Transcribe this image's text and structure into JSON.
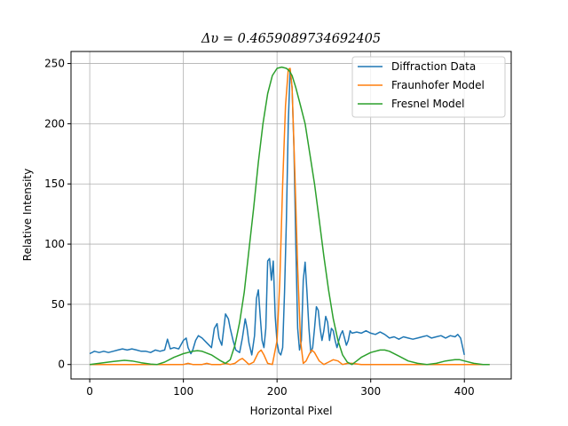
{
  "chart_data": {
    "type": "line",
    "title": "Δυ = 0.4659089734692405",
    "xlabel": "Horizontal Pixel",
    "ylabel": "Relative Intensity",
    "xlim": [
      -20,
      450
    ],
    "ylim": [
      -12,
      260
    ],
    "xticks": [
      0,
      100,
      200,
      300,
      400
    ],
    "yticks": [
      0,
      50,
      100,
      150,
      200,
      250
    ],
    "grid": true,
    "legend_position": "top-right",
    "series": [
      {
        "name": "Diffraction Data",
        "color": "#1f77b4",
        "x": [
          0,
          5,
          10,
          15,
          20,
          25,
          30,
          35,
          40,
          45,
          50,
          55,
          60,
          65,
          70,
          75,
          80,
          83,
          86,
          90,
          95,
          100,
          103,
          105,
          108,
          110,
          113,
          116,
          120,
          125,
          130,
          133,
          136,
          138,
          141,
          145,
          148,
          150,
          153,
          156,
          160,
          163,
          166,
          168,
          170,
          173,
          176,
          178,
          180,
          182,
          184,
          186,
          188,
          190,
          192,
          194,
          196,
          198,
          200,
          202,
          204,
          206,
          208,
          210,
          212,
          214,
          216,
          218,
          220,
          222,
          224,
          226,
          228,
          230,
          232,
          234,
          236,
          238,
          240,
          242,
          244,
          246,
          248,
          250,
          252,
          254,
          256,
          258,
          260,
          262,
          264,
          266,
          268,
          270,
          272,
          274,
          276,
          278,
          280,
          285,
          290,
          295,
          300,
          305,
          310,
          315,
          320,
          325,
          330,
          335,
          340,
          345,
          350,
          355,
          360,
          365,
          370,
          375,
          380,
          385,
          390,
          393,
          396,
          400
        ],
        "values": [
          9,
          11,
          10,
          11,
          10,
          11,
          12,
          13,
          12,
          13,
          12,
          11,
          11,
          10,
          12,
          11,
          12,
          21,
          13,
          14,
          13,
          20,
          22,
          14,
          9,
          12,
          20,
          24,
          22,
          18,
          14,
          30,
          34,
          22,
          16,
          42,
          38,
          30,
          20,
          12,
          10,
          22,
          38,
          30,
          18,
          8,
          24,
          55,
          62,
          40,
          20,
          14,
          30,
          86,
          88,
          70,
          86,
          40,
          18,
          10,
          8,
          14,
          60,
          120,
          200,
          245,
          230,
          180,
          100,
          30,
          12,
          20,
          70,
          85,
          60,
          30,
          10,
          14,
          30,
          48,
          45,
          30,
          20,
          28,
          40,
          35,
          20,
          30,
          28,
          20,
          14,
          20,
          25,
          28,
          22,
          16,
          20,
          28,
          26,
          27,
          26,
          28,
          26,
          25,
          27,
          25,
          22,
          23,
          21,
          23,
          22,
          21,
          22,
          23,
          24,
          22,
          23,
          24,
          22,
          24,
          23,
          25,
          22,
          8
        ]
      },
      {
        "name": "Fraunhofer Model",
        "color": "#ff7f0e",
        "x": [
          0,
          20,
          40,
          60,
          80,
          100,
          105,
          110,
          120,
          125,
          130,
          140,
          145,
          150,
          155,
          160,
          163,
          166,
          170,
          175,
          180,
          183,
          186,
          190,
          195,
          200,
          203,
          206,
          209,
          212,
          214,
          216,
          219,
          222,
          225,
          228,
          231,
          234,
          237,
          240,
          245,
          250,
          255,
          260,
          265,
          270,
          275,
          280,
          290,
          300,
          320,
          340,
          360,
          380,
          400,
          420,
          427
        ],
        "values": [
          0,
          0,
          0,
          0,
          0,
          0,
          1,
          0,
          0,
          1,
          0,
          0,
          1,
          0,
          1,
          4,
          5,
          3,
          0,
          2,
          10,
          12,
          8,
          1,
          0,
          20,
          70,
          150,
          215,
          245,
          246,
          230,
          160,
          80,
          20,
          1,
          3,
          8,
          12,
          10,
          3,
          0,
          2,
          4,
          3,
          0,
          1,
          1,
          0,
          0,
          0,
          0,
          0,
          0,
          0,
          0,
          0
        ]
      },
      {
        "name": "Fresnel Model",
        "color": "#2ca02c",
        "x": [
          0,
          10,
          20,
          30,
          37,
          45,
          55,
          65,
          72,
          80,
          90,
          100,
          110,
          115,
          120,
          130,
          140,
          145,
          150,
          155,
          160,
          165,
          170,
          175,
          180,
          185,
          190,
          195,
          200,
          205,
          210,
          213,
          216,
          220,
          225,
          230,
          235,
          240,
          245,
          250,
          255,
          260,
          265,
          270,
          275,
          280,
          285,
          290,
          300,
          310,
          315,
          320,
          330,
          340,
          350,
          360,
          370,
          380,
          390,
          395,
          400,
          410,
          420,
          427
        ],
        "values": [
          0,
          1,
          2,
          3,
          3.5,
          3,
          1.5,
          0.3,
          0,
          2,
          6,
          9,
          11,
          11.5,
          11,
          8,
          3,
          1,
          4,
          16,
          35,
          60,
          95,
          130,
          168,
          200,
          225,
          240,
          246,
          247,
          246,
          244,
          240,
          230,
          215,
          200,
          175,
          150,
          120,
          90,
          62,
          38,
          20,
          8,
          2,
          0,
          3,
          6,
          10,
          12,
          12,
          11,
          7,
          3,
          1,
          0,
          1,
          3,
          4,
          4,
          3,
          1,
          0,
          0
        ]
      }
    ]
  }
}
